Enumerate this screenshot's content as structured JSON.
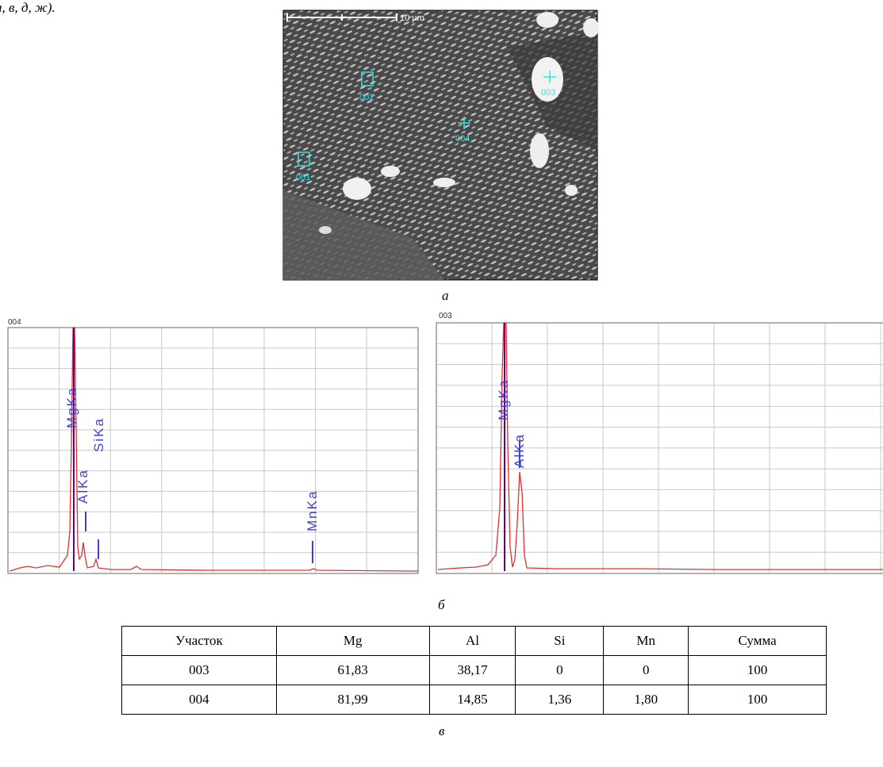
{
  "caption_top": "а, в, д, ж).",
  "figure_a": {
    "scale_label": "10 µm",
    "markers": [
      "001",
      "002",
      "003",
      "004"
    ],
    "caption": "а"
  },
  "figure_b": {
    "spectra": [
      {
        "label": "004",
        "peaks": [
          "MgKa",
          "AlKa",
          "SiKa",
          "MnKa"
        ]
      },
      {
        "label": "003",
        "peaks": [
          "MgKa",
          "AlKa"
        ]
      }
    ],
    "caption": "б"
  },
  "table": {
    "header": [
      "Участок",
      "Mg",
      "Al",
      "Si",
      "Mn",
      "Сумма"
    ],
    "rows": [
      [
        "003",
        "61,83",
        "38,17",
        "0",
        "0",
        "100"
      ],
      [
        "004",
        "81,99",
        "14,85",
        "1,36",
        "1,80",
        "100"
      ]
    ],
    "caption": "в"
  }
}
